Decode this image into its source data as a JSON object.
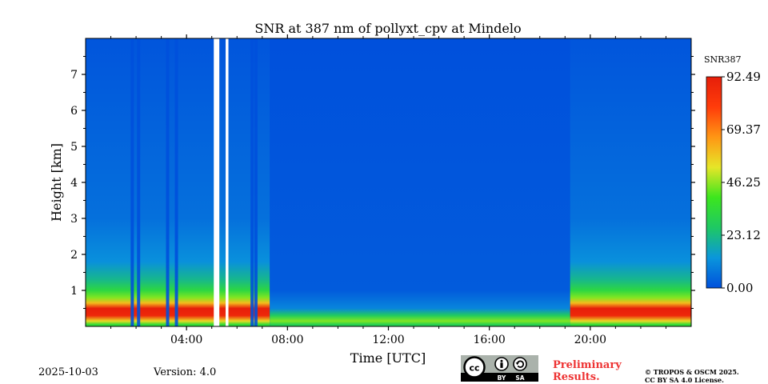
{
  "chart_data": {
    "type": "heatmap",
    "title": "SNR at 387 nm of pollyxt_cpv at Mindelo",
    "xlabel": "Time [UTC]",
    "ylabel": "Height [km]",
    "xlim_hours": [
      0,
      24
    ],
    "ylim_km": [
      0,
      8
    ],
    "x_ticks": [
      {
        "hour": 4,
        "label": "04:00"
      },
      {
        "hour": 8,
        "label": "08:00"
      },
      {
        "hour": 12,
        "label": "12:00"
      },
      {
        "hour": 16,
        "label": "16:00"
      },
      {
        "hour": 20,
        "label": "20:00"
      }
    ],
    "y_ticks": [
      {
        "km": 1,
        "label": "1"
      },
      {
        "km": 2,
        "label": "2"
      },
      {
        "km": 3,
        "label": "3"
      },
      {
        "km": 4,
        "label": "4"
      },
      {
        "km": 5,
        "label": "5"
      },
      {
        "km": 6,
        "label": "6"
      },
      {
        "km": 7,
        "label": "7"
      }
    ],
    "colorbar": {
      "label": "SNR387",
      "range": [
        0.0,
        92.49
      ],
      "ticks": [
        {
          "value": 0.0,
          "label": "0.00"
        },
        {
          "value": 23.12,
          "label": "23.12"
        },
        {
          "value": 46.25,
          "label": "46.25"
        },
        {
          "value": 69.37,
          "label": "69.37"
        },
        {
          "value": 92.49,
          "label": "92.49"
        }
      ],
      "colors": [
        "#0050dc",
        "#0a96dc",
        "#1ec864",
        "#3ce61e",
        "#e6e628",
        "#ff9614",
        "#ff3c0a",
        "#e61e0a"
      ]
    },
    "no_data_hours": [
      [
        5.08,
        5.3
      ],
      [
        5.55,
        5.66
      ]
    ],
    "night_hours": [
      [
        0,
        7.3
      ],
      [
        19.2,
        24
      ]
    ],
    "day_hours": [
      [
        7.3,
        19.2
      ]
    ],
    "snr_profile_night": [
      {
        "km": 0.05,
        "snr": 35
      },
      {
        "km": 0.15,
        "snr": 55
      },
      {
        "km": 0.3,
        "snr": 88
      },
      {
        "km": 0.5,
        "snr": 92
      },
      {
        "km": 0.65,
        "snr": 60
      },
      {
        "km": 0.8,
        "snr": 45
      },
      {
        "km": 1.0,
        "snr": 33
      },
      {
        "km": 1.3,
        "snr": 22
      },
      {
        "km": 1.8,
        "snr": 12
      },
      {
        "km": 3.0,
        "snr": 6
      },
      {
        "km": 8.0,
        "snr": 1
      }
    ],
    "snr_profile_day": [
      {
        "km": 0.05,
        "snr": 30
      },
      {
        "km": 0.15,
        "snr": 45
      },
      {
        "km": 0.3,
        "snr": 28
      },
      {
        "km": 0.5,
        "snr": 10
      },
      {
        "km": 1.0,
        "snr": 2
      },
      {
        "km": 8.0,
        "snr": 0
      }
    ],
    "low_snr_streaks_hours": [
      1.85,
      2.1,
      3.25,
      3.6,
      6.6,
      6.75
    ]
  },
  "footer": {
    "date": "2025-10-03",
    "version": "Version: 4.0",
    "preliminary_line1": "Preliminary",
    "preliminary_line2": "Results.",
    "copyright_line1": "© TROPOS & OSCM 2025.",
    "copyright_line2": "CC BY SA 4.0 License.",
    "cc_badge": {
      "cc": "cc",
      "by": "BY",
      "sa": "SA"
    }
  }
}
